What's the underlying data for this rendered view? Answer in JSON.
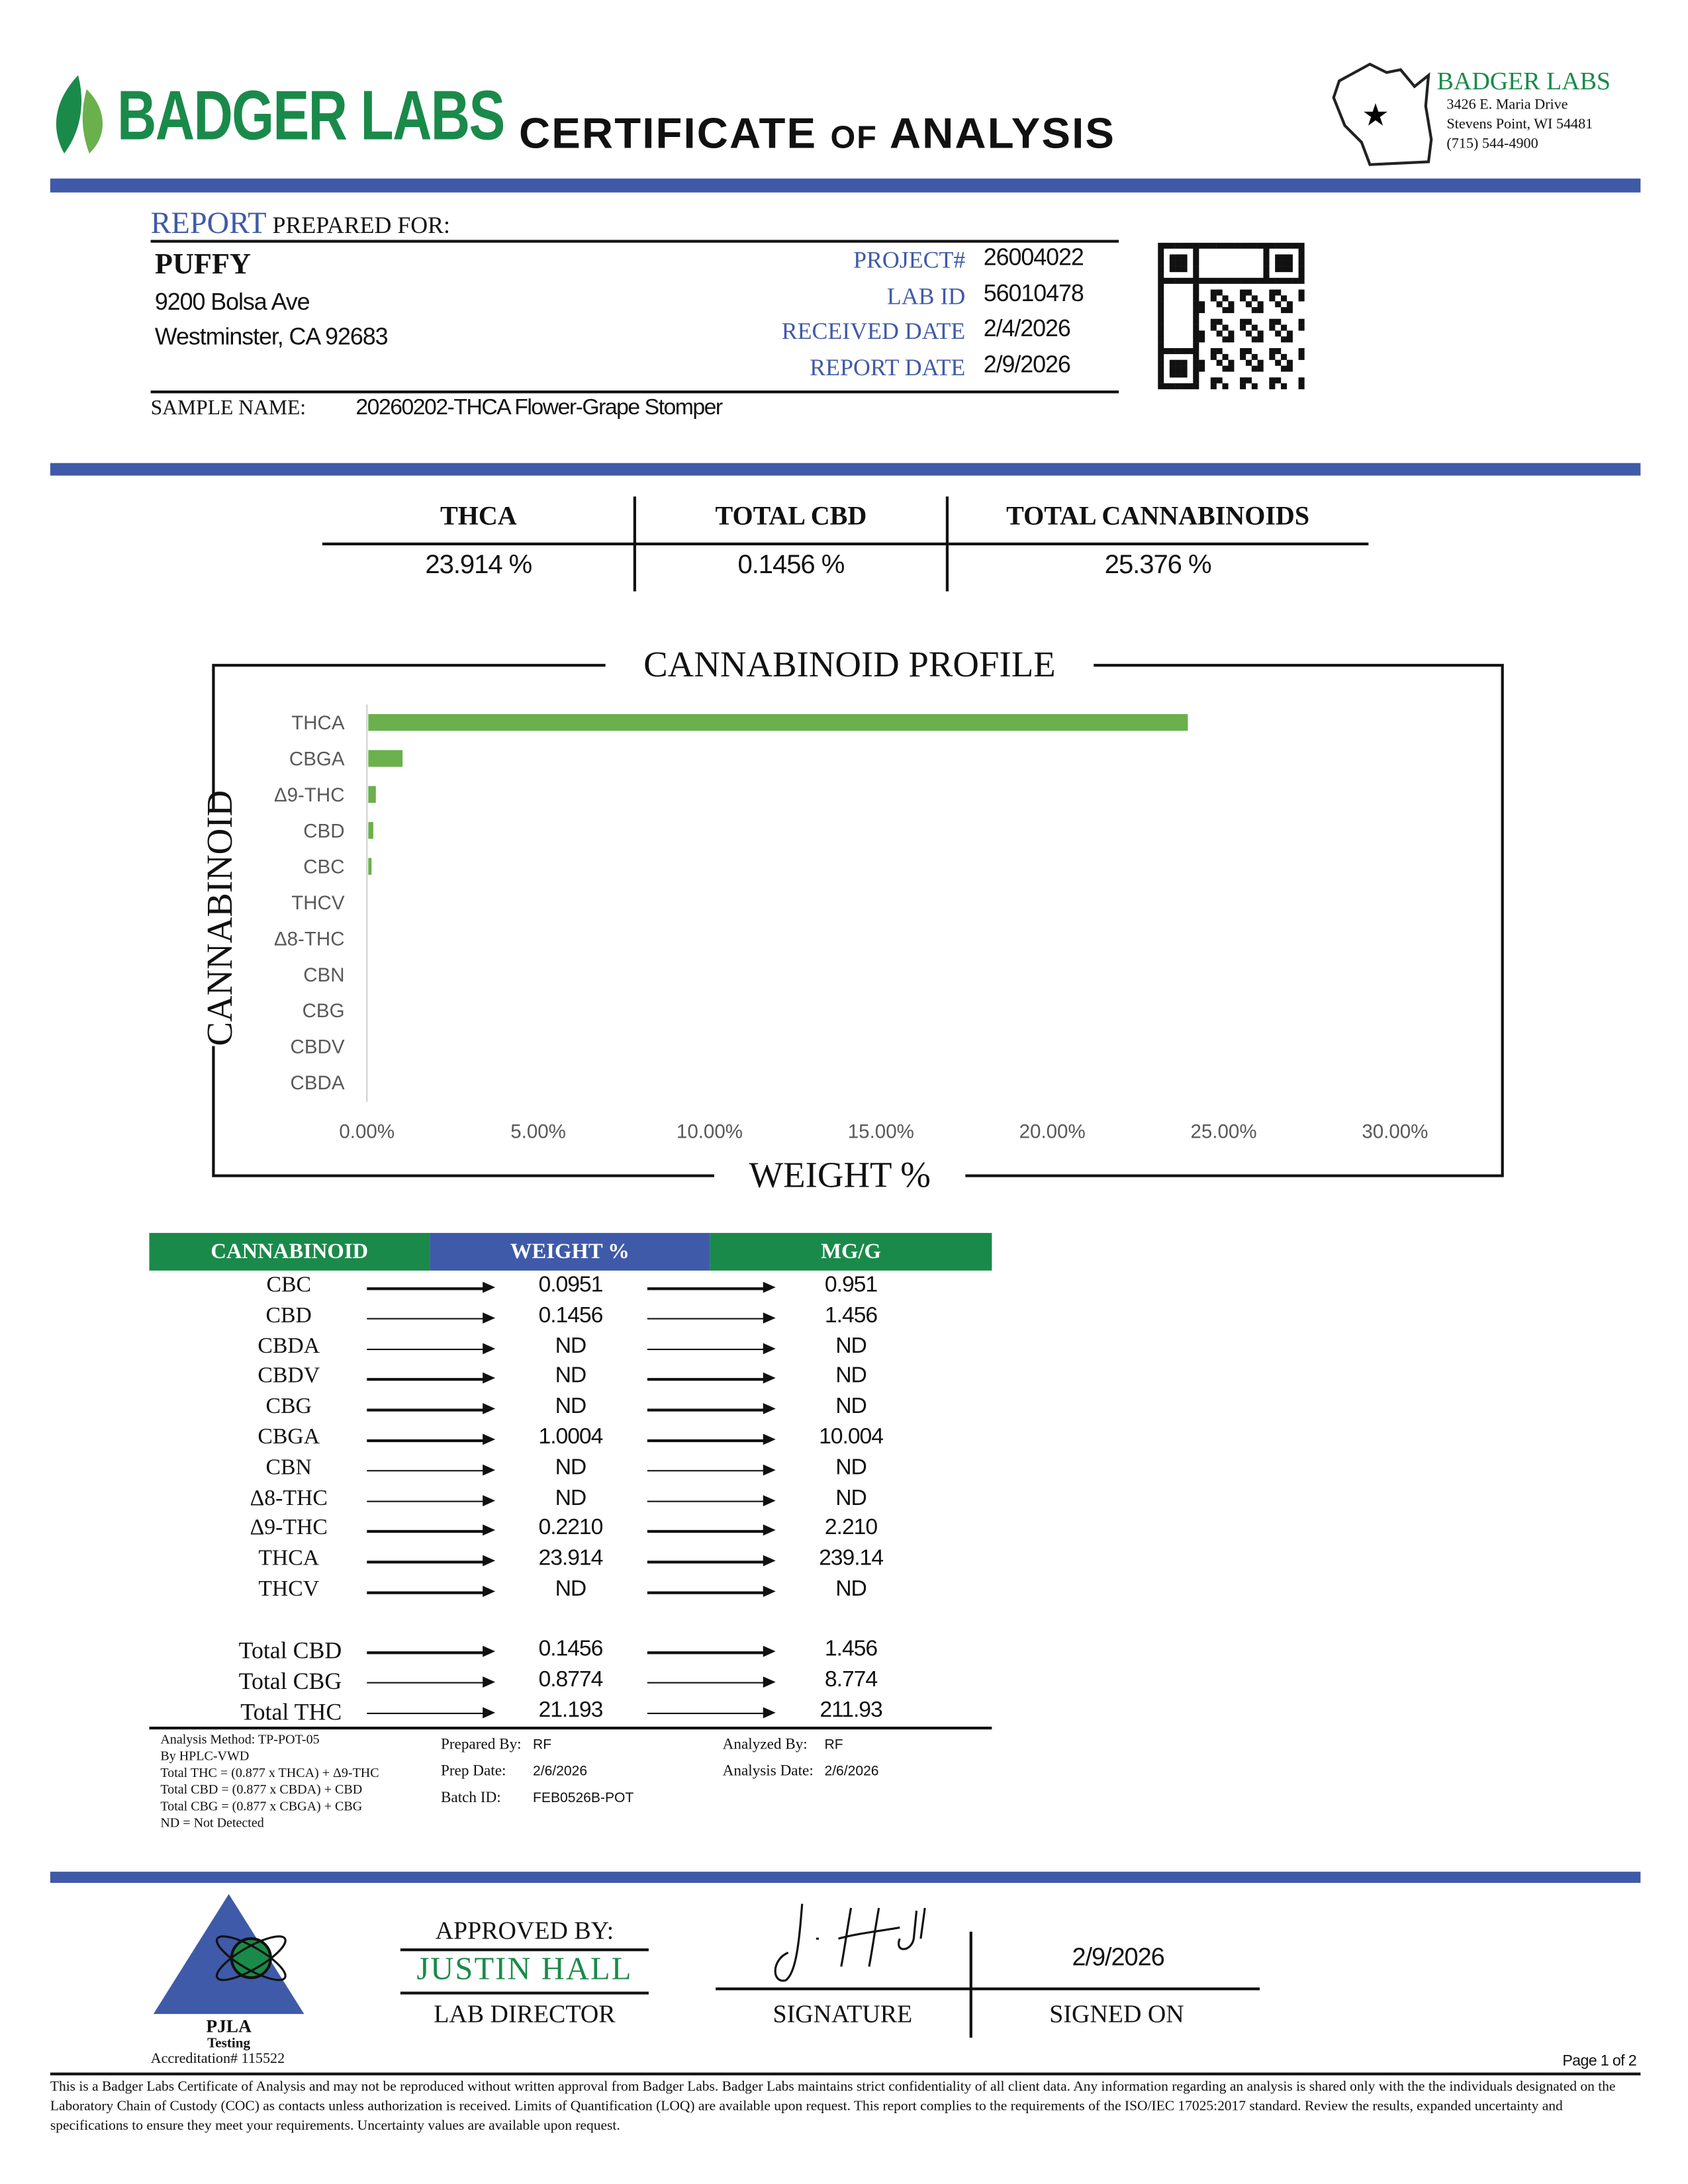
{
  "header": {
    "brand": "BADGER LABS",
    "title_main": "CERTIFICATE",
    "title_of": "OF",
    "title_end": "ANALYSIS",
    "lab_name": "BADGER LABS",
    "address1": "3426 E. Maria Drive",
    "address2": "Stevens Point, WI 54481",
    "phone": "(715) 544-4900"
  },
  "client": {
    "report_word": "REPORT",
    "prepared_for": "PREPARED FOR:",
    "name": "PUFFY",
    "address1": "9200 Bolsa Ave",
    "address2": "Westminster, CA 92683",
    "sample_label": "SAMPLE NAME:",
    "sample_name": "20260202-THCA Flower-Grape Stomper"
  },
  "meta": [
    {
      "label": "PROJECT#",
      "value": "26004022"
    },
    {
      "label": "LAB ID",
      "value": "56010478"
    },
    {
      "label": "RECEIVED DATE",
      "value": "2/4/2026"
    },
    {
      "label": "REPORT DATE",
      "value": "2/9/2026"
    }
  ],
  "summary": [
    {
      "label": "THCA",
      "value": "23.914 %"
    },
    {
      "label": "TOTAL CBD",
      "value": "0.1456 %"
    },
    {
      "label": "TOTAL CANNABINOIDS",
      "value": "25.376 %"
    }
  ],
  "chart_data": {
    "type": "bar",
    "orientation": "horizontal",
    "title": "CANNABINOID PROFILE",
    "xlabel": "WEIGHT %",
    "ylabel": "CANNABINOID",
    "categories": [
      "THCA",
      "CBGA",
      "Δ9-THC",
      "CBD",
      "CBC",
      "THCV",
      "Δ8-THC",
      "CBN",
      "CBG",
      "CBDV",
      "CBDA"
    ],
    "values": [
      23.914,
      1.0004,
      0.221,
      0.1456,
      0.0951,
      0,
      0,
      0,
      0,
      0,
      0
    ],
    "xlim": [
      0,
      30
    ],
    "xticks": [
      "0.00%",
      "5.00%",
      "10.00%",
      "15.00%",
      "20.00%",
      "25.00%",
      "30.00%"
    ],
    "grid": false,
    "bar_color": "#6ab04c"
  },
  "table": {
    "headers": [
      "CANNABINOID",
      "WEIGHT %",
      "MG/G"
    ],
    "rows": [
      [
        "CBC",
        "0.0951",
        "0.951"
      ],
      [
        "CBD",
        "0.1456",
        "1.456"
      ],
      [
        "CBDA",
        "ND",
        "ND"
      ],
      [
        "CBDV",
        "ND",
        "ND"
      ],
      [
        "CBG",
        "ND",
        "ND"
      ],
      [
        "CBGA",
        "1.0004",
        "10.004"
      ],
      [
        "CBN",
        "ND",
        "ND"
      ],
      [
        "Δ8-THC",
        "ND",
        "ND"
      ],
      [
        "Δ9-THC",
        "0.2210",
        "2.210"
      ],
      [
        "THCA",
        "23.914",
        "239.14"
      ],
      [
        "THCV",
        "ND",
        "ND"
      ]
    ],
    "totals": [
      [
        "Total CBD",
        "0.1456",
        "1.456"
      ],
      [
        "Total CBG",
        "0.8774",
        "8.774"
      ],
      [
        "Total THC",
        "21.193",
        "211.93"
      ]
    ],
    "colors": {
      "green": "#1a8a4a",
      "blue": "#3f5aa8"
    }
  },
  "notes": {
    "lines": [
      "Analysis Method: TP-POT-05",
      "By HPLC-VWD",
      "Total THC = (0.877 x  THCA) + Δ9-THC",
      "Total CBD = (0.877 x  CBDA) + CBD",
      "Total CBG = (0.877 x  CBGA) + CBG",
      "ND = Not Detected"
    ],
    "prepared_by_label": "Prepared By:",
    "prepared_by": "RF",
    "prep_date_label": "Prep Date:",
    "prep_date": "2/6/2026",
    "batch_label": "Batch ID:",
    "batch": "FEB0526B-POT",
    "analyzed_by_label": "Analyzed By:",
    "analyzed_by": "RF",
    "analysis_date_label": "Analysis Date:",
    "analysis_date": "2/6/2026"
  },
  "footer": {
    "pjla": "PJLA",
    "pjla_sub": "Testing",
    "accreditation": "Accreditation# 115522",
    "approved_by": "APPROVED BY:",
    "approver": "JUSTIN HALL",
    "approver_title": "LAB DIRECTOR",
    "signature_label": "SIGNATURE",
    "signed_on_label": "SIGNED ON",
    "signed_on": "2/9/2026",
    "page": "Page 1 of 2",
    "disclaimer": "This is a Badger Labs Certificate of Analysis and may not be reproduced without written approval from Badger Labs. Badger Labs maintains strict confidentiality of all client data. Any information regarding an analysis is shared only with the the individuals designated on the Laboratory Chain of Custody (COC) as contacts unless authorization is received. Limits of Quantification (LOQ) are available upon request. This report complies to the requirements of the ISO/IEC 17025:2017 standard. Review the results, expanded uncertainty and specifications to ensure they meet your requirements. Uncertainty values are available upon request."
  }
}
